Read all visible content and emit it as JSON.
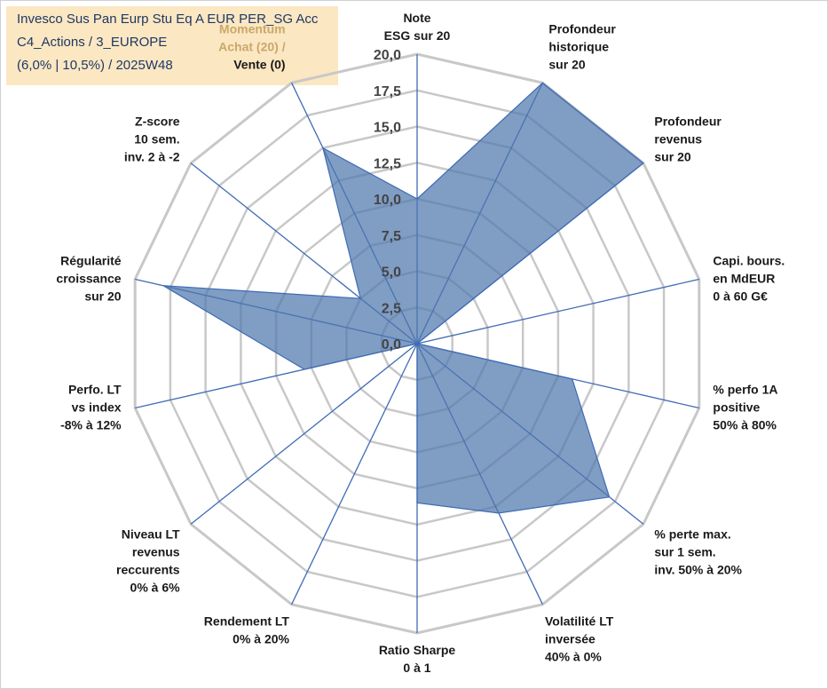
{
  "title": {
    "line1": "Invesco Sus Pan Eurp Stu Eq A EUR PER_SG Acc",
    "line2": "C4_Actions / 3_EUROPE",
    "line3": "(6,0% | 10,5%) / 2025W48"
  },
  "colors": {
    "fill": "#4f77ad",
    "fill_opacity": 0.72,
    "stroke": "#3f6bb5",
    "grid": "#c8c8c8",
    "spoke": "#3f6bb5",
    "title_bg": "#fbe7c2",
    "muted_label": "#c9a86a"
  },
  "chart_data": {
    "type": "radar",
    "rmin": 0,
    "rmax": 20,
    "tick_step": 2.5,
    "tick_labels": [
      "0,0",
      "2,5",
      "5,0",
      "7,5",
      "10,0",
      "12,5",
      "15,0",
      "17,5",
      "20,0"
    ],
    "axes": [
      {
        "label": [
          "Note",
          "ESG sur 20"
        ],
        "value": 10
      },
      {
        "label": [
          "Profondeur",
          "historique",
          "sur 20"
        ],
        "value": 20
      },
      {
        "label": [
          "Profondeur",
          "revenus",
          "sur 20"
        ],
        "value": 20
      },
      {
        "label": [
          "Capi. bours.",
          "en MdEUR",
          "0 à 60 G€"
        ],
        "value": 0
      },
      {
        "label": [
          "% perfo 1A",
          "positive",
          "50% à 80%"
        ],
        "value": 11
      },
      {
        "label": [
          "% perte max.",
          "sur 1 sem.",
          "inv. 50% à 20%"
        ],
        "value": 17
      },
      {
        "label": [
          "Volatilité LT",
          "inversée",
          "40% à 0%"
        ],
        "value": 13
      },
      {
        "label": [
          "Ratio Sharpe",
          "0 à 1"
        ],
        "value": 11
      },
      {
        "label": [
          "Rendement LT",
          "0% à 20%"
        ],
        "value": 0
      },
      {
        "label": [
          "Niveau LT",
          "revenus",
          "reccurents",
          "0% à 6%"
        ],
        "value": 0
      },
      {
        "label": [
          "Perfo. LT",
          "vs index",
          "-8% à 12%"
        ],
        "value": 8
      },
      {
        "label": [
          "Régularité",
          "croissance",
          "sur 20"
        ],
        "value": 18
      },
      {
        "label": [
          "Z-score",
          "10 sem.",
          "inv. 2 à -2"
        ],
        "value": 5
      },
      {
        "label": [
          "Momentum",
          "Achat (20) /",
          "Vente (0)"
        ],
        "value": 15
      }
    ]
  }
}
